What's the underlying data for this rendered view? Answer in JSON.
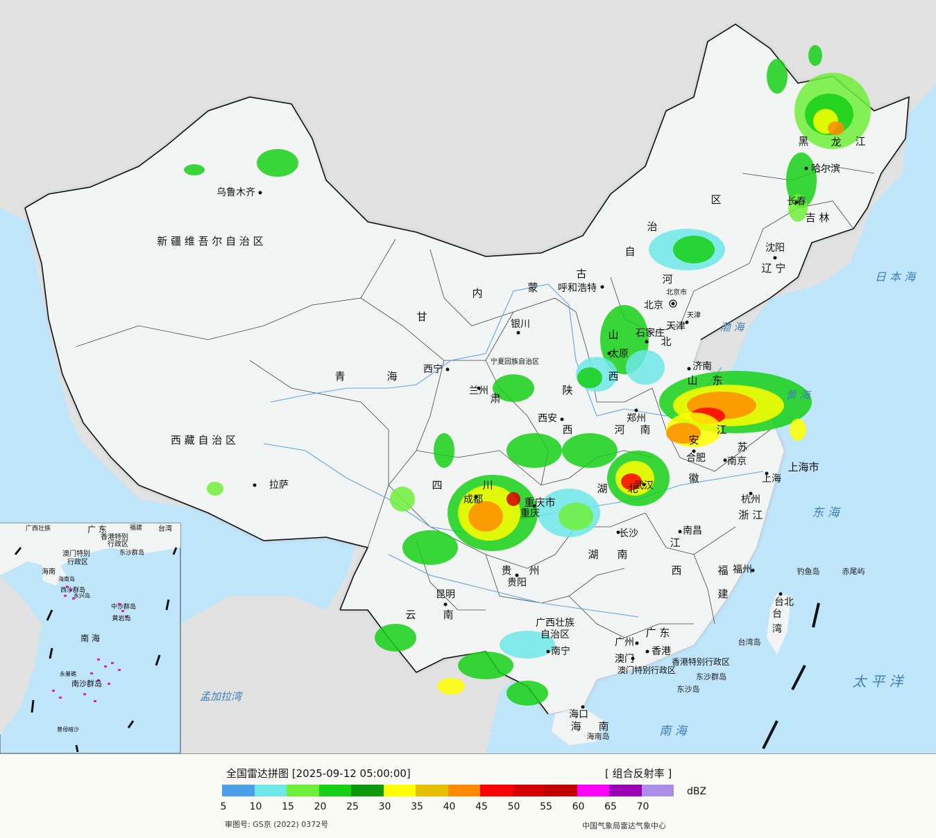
{
  "legend": {
    "title": "全国雷达拼图 [2025-09-12 05:00:00]",
    "product": "[ 组合反射率 ]",
    "unit": "dBZ",
    "approval": "审图号: GS京 (2022) 0372号",
    "credit": "中国气象局雷达气象中心",
    "colors": [
      "#4b9ee8",
      "#6de8e8",
      "#6ef03a",
      "#16d016",
      "#0c9a0c",
      "#ffff00",
      "#e6c000",
      "#ff8c00",
      "#ff0000",
      "#d40000",
      "#c00000",
      "#ff00ff",
      "#9a00b4",
      "#ac8ee8"
    ],
    "ticks": [
      "5",
      "10",
      "15",
      "20",
      "25",
      "30",
      "35",
      "40",
      "45",
      "50",
      "55",
      "60",
      "65",
      "70"
    ]
  },
  "map": {
    "colors": {
      "sea": "#bfe6fb",
      "land_china": "#f3f4f4",
      "land_other": "#e2e2e2",
      "border": "#111111",
      "province": "#444444",
      "river": "#5aa7e8"
    },
    "region_labels": [
      {
        "id": "xinjiang",
        "text": "新 疆 维 吾 尔 自 治 区"
      },
      {
        "id": "xizang",
        "text": "西 藏 自 治 区"
      },
      {
        "id": "qinghai1",
        "text": "青"
      },
      {
        "id": "qinghai2",
        "text": "海"
      },
      {
        "id": "gansu1",
        "text": "甘"
      },
      {
        "id": "gansu2",
        "text": "肃"
      },
      {
        "id": "nmg1",
        "text": "内"
      },
      {
        "id": "nmg2",
        "text": "蒙"
      },
      {
        "id": "nmg3",
        "text": "古"
      },
      {
        "id": "nmg4",
        "text": "自"
      },
      {
        "id": "nmg5",
        "text": "治"
      },
      {
        "id": "nmg6",
        "text": "区"
      },
      {
        "id": "hlj1",
        "text": "黑"
      },
      {
        "id": "hlj2",
        "text": "龙"
      },
      {
        "id": "hlj3",
        "text": "江"
      },
      {
        "id": "jilin",
        "text": "吉 林"
      },
      {
        "id": "liaoning",
        "text": "辽 宁"
      },
      {
        "id": "hebei1",
        "text": "河"
      },
      {
        "id": "hebei2",
        "text": "北"
      },
      {
        "id": "shanxi1",
        "text": "山"
      },
      {
        "id": "shanxi2",
        "text": "西"
      },
      {
        "id": "shaanxi1",
        "text": "陕"
      },
      {
        "id": "shaanxi2",
        "text": "西"
      },
      {
        "id": "shandong1",
        "text": "山"
      },
      {
        "id": "shandong2",
        "text": "东"
      },
      {
        "id": "henan1",
        "text": "河"
      },
      {
        "id": "henan2",
        "text": "南"
      },
      {
        "id": "jiangsu1",
        "text": "江"
      },
      {
        "id": "jiangsu2",
        "text": "苏"
      },
      {
        "id": "anhui1",
        "text": "安"
      },
      {
        "id": "anhui2",
        "text": "徽"
      },
      {
        "id": "hubei1",
        "text": "湖"
      },
      {
        "id": "hubei2",
        "text": "北"
      },
      {
        "id": "sichuan1",
        "text": "四"
      },
      {
        "id": "sichuan2",
        "text": "川"
      },
      {
        "id": "chongqing",
        "text": "重庆市"
      },
      {
        "id": "shanghai",
        "text": "上海市"
      },
      {
        "id": "zhejiang",
        "text": "浙 江"
      },
      {
        "id": "jiangxi1",
        "text": "江"
      },
      {
        "id": "jiangxi2",
        "text": "西"
      },
      {
        "id": "hunan1",
        "text": "湖"
      },
      {
        "id": "hunan2",
        "text": "南"
      },
      {
        "id": "guizhou1",
        "text": "贵"
      },
      {
        "id": "guizhou2",
        "text": "州"
      },
      {
        "id": "yunnan1",
        "text": "云"
      },
      {
        "id": "yunnan2",
        "text": "南"
      },
      {
        "id": "fujian1",
        "text": "福"
      },
      {
        "id": "fujian2",
        "text": "建"
      },
      {
        "id": "guangxi1",
        "text": "广西壮族"
      },
      {
        "id": "guangxi2",
        "text": "自治区"
      },
      {
        "id": "guangdong",
        "text": "广 东"
      },
      {
        "id": "hainan1",
        "text": "海"
      },
      {
        "id": "hainan2",
        "text": "南"
      },
      {
        "id": "taiwan1",
        "text": "台"
      },
      {
        "id": "taiwan2",
        "text": "湾"
      },
      {
        "id": "hk",
        "text": "香港特别行政区"
      },
      {
        "id": "macau",
        "text": "澳门特别行政区"
      },
      {
        "id": "ningxia",
        "text": "宁夏回族自治区"
      },
      {
        "id": "beijing",
        "text": "北京市"
      },
      {
        "id": "tianjin",
        "text": "天津"
      }
    ],
    "cities": [
      {
        "id": "urumqi",
        "text": "乌鲁木齐"
      },
      {
        "id": "lhasa",
        "text": "拉萨"
      },
      {
        "id": "xining",
        "text": "西宁"
      },
      {
        "id": "lanzhou",
        "text": "兰州"
      },
      {
        "id": "yinchuan",
        "text": "银川"
      },
      {
        "id": "hohhot",
        "text": "呼和浩特"
      },
      {
        "id": "harbin",
        "text": "哈尔滨"
      },
      {
        "id": "changchun",
        "text": "长春"
      },
      {
        "id": "shenyang",
        "text": "沈阳"
      },
      {
        "id": "beijing",
        "text": "北京"
      },
      {
        "id": "tianjin",
        "text": "天津"
      },
      {
        "id": "shijiazhuang",
        "text": "石家庄"
      },
      {
        "id": "taiyuan",
        "text": "太原"
      },
      {
        "id": "jinan",
        "text": "济南"
      },
      {
        "id": "zhengzhou",
        "text": "郑州"
      },
      {
        "id": "xian",
        "text": "西安"
      },
      {
        "id": "hefei",
        "text": "合肥"
      },
      {
        "id": "nanjing",
        "text": "南京"
      },
      {
        "id": "shanghai",
        "text": "上海"
      },
      {
        "id": "hangzhou",
        "text": "杭州"
      },
      {
        "id": "wuhan",
        "text": "武汉"
      },
      {
        "id": "chengdu",
        "text": "成都"
      },
      {
        "id": "chongqing",
        "text": "重庆"
      },
      {
        "id": "changsha",
        "text": "长沙"
      },
      {
        "id": "nanchang",
        "text": "南昌"
      },
      {
        "id": "fuzhou",
        "text": "福州"
      },
      {
        "id": "guiyang",
        "text": "贵阳"
      },
      {
        "id": "kunming",
        "text": "昆明"
      },
      {
        "id": "nanning",
        "text": "南宁"
      },
      {
        "id": "guangzhou",
        "text": "广州"
      },
      {
        "id": "macau",
        "text": "澳门"
      },
      {
        "id": "hongkong",
        "text": "香港"
      },
      {
        "id": "haikou",
        "text": "海口"
      },
      {
        "id": "taipei",
        "text": "台北"
      }
    ],
    "sea_labels": [
      {
        "id": "japan_sea",
        "text": "日 本 海"
      },
      {
        "id": "bohai",
        "text": "渤 海"
      },
      {
        "id": "huanghai",
        "text": "黄 海"
      },
      {
        "id": "donghai",
        "text": "东 海"
      },
      {
        "id": "taipingyang",
        "text": "太 平 洋"
      },
      {
        "id": "nanhai",
        "text": "南 海"
      },
      {
        "id": "bengal",
        "text": "孟加拉湾"
      }
    ],
    "island_labels": [
      {
        "id": "diaoyu",
        "text": "钓鱼岛"
      },
      {
        "id": "chiwei",
        "text": "赤尾屿"
      },
      {
        "id": "dongsha1",
        "text": "东沙群岛"
      },
      {
        "id": "dongsha2",
        "text": "东沙岛"
      },
      {
        "id": "taiwan_island",
        "text": "台湾岛"
      },
      {
        "id": "hainan_island",
        "text": "海南岛"
      }
    ],
    "inset_labels": [
      {
        "id": "in_gd",
        "text": "广 东"
      },
      {
        "id": "in_gx",
        "text": "广西壮族"
      },
      {
        "id": "in_fj",
        "text": "福建"
      },
      {
        "id": "in_tw",
        "text": "台湾"
      },
      {
        "id": "in_hk",
        "text": "香港特别"
      },
      {
        "id": "in_hk2",
        "text": "行政区"
      },
      {
        "id": "in_mo",
        "text": "澳门特别"
      },
      {
        "id": "in_mo2",
        "text": "行政区"
      },
      {
        "id": "in_dongsha",
        "text": "东沙群岛"
      },
      {
        "id": "in_hainan",
        "text": "海南"
      },
      {
        "id": "in_hainan_is",
        "text": "海南岛"
      },
      {
        "id": "in_xisha",
        "text": "西沙群岛"
      },
      {
        "id": "in_yongxing",
        "text": "永兴岛"
      },
      {
        "id": "in_zhongsha",
        "text": "中沙群岛"
      },
      {
        "id": "in_huangyan",
        "text": "黄岩岛"
      },
      {
        "id": "in_nanhai",
        "text": "南 海"
      },
      {
        "id": "in_yongshu",
        "text": "永暑礁"
      },
      {
        "id": "in_nansha",
        "text": "南沙群岛"
      },
      {
        "id": "in_zengmu",
        "text": "曾母暗沙"
      }
    ]
  }
}
